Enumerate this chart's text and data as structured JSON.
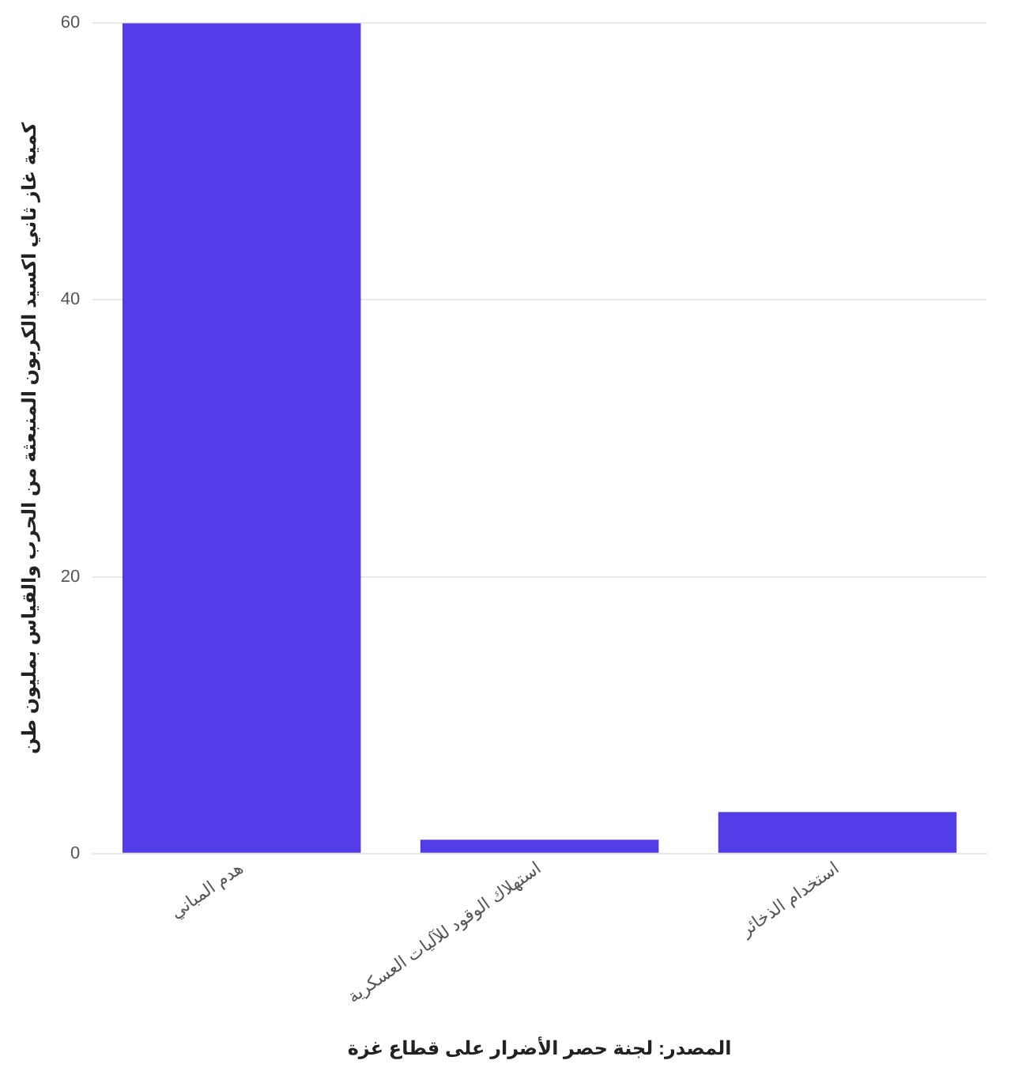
{
  "chart_data": {
    "type": "bar",
    "categories": [
      "هدم المباني",
      "استهلاك الوقود للآليات العسكرية",
      "استخدام الذخائر"
    ],
    "values": [
      60,
      1,
      3
    ],
    "color": "#533de9",
    "ylabel": "كمية غاز ثاني اكسيد الكربون المنبعثة من الحرب والقياس بمليون طن",
    "xlabel": "المصدر: لجنة حصر الأضرار على قطاع غزة",
    "ylim": [
      0,
      60
    ],
    "yticks": [
      0,
      20,
      40,
      60
    ],
    "grid": "y"
  }
}
